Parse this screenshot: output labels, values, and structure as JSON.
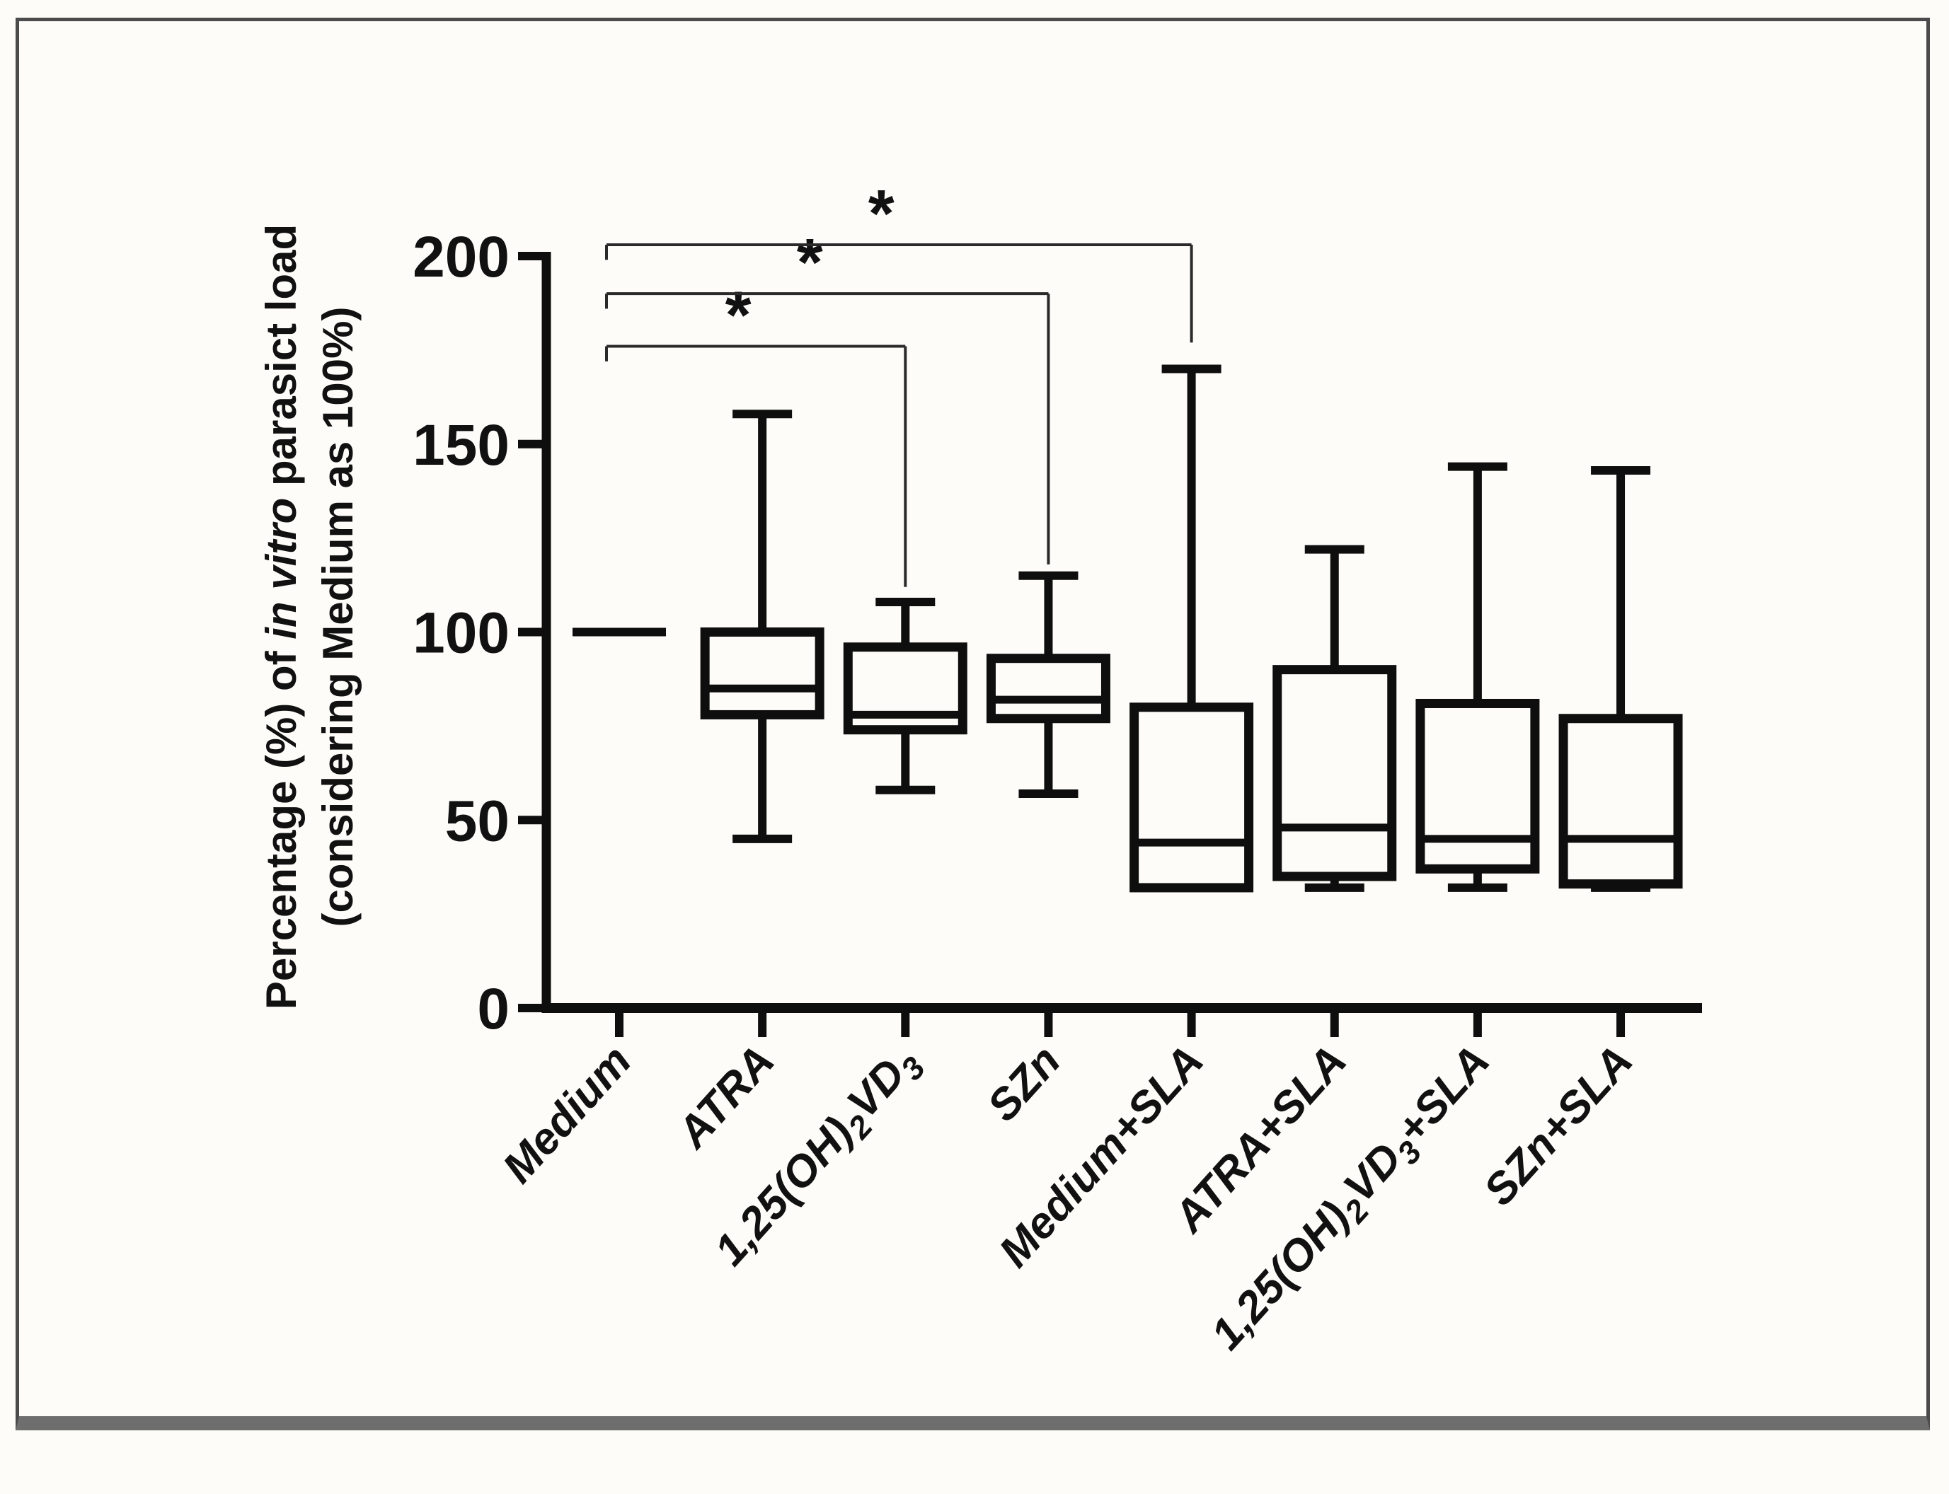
{
  "figure": {
    "kind": "boxplot-figure",
    "background": "#fdfcf9",
    "frame_color": "#4b4b4b",
    "frame_bottom_color": "#6e6e6e",
    "ink_color": "#0e0e0e",
    "bracket_color": "#2a2a2a"
  },
  "chart_data": {
    "type": "box",
    "title": "",
    "ylabel_line1_prefix": "Percentage (%) of ",
    "ylabel_line1_italic": "in vitro",
    "ylabel_line1_suffix": " parasict load",
    "ylabel_line2": "(considering Medium as 100%)",
    "xlabel": "",
    "ylim": [
      0,
      200
    ],
    "y_ticks": [
      0,
      50,
      100,
      150,
      200
    ],
    "grid": false,
    "legend": "none",
    "categories": [
      {
        "name": "Medium",
        "parts": [
          {
            "t": "Medium"
          }
        ]
      },
      {
        "name": "ATRA",
        "parts": [
          {
            "t": "ATRA"
          }
        ]
      },
      {
        "name": "1,25(OH)2VD3",
        "parts": [
          {
            "t": "1,25(OH)"
          },
          {
            "t": "2",
            "sub": true
          },
          {
            "t": "VD"
          },
          {
            "t": "3",
            "sub": true
          }
        ]
      },
      {
        "name": "SZn",
        "parts": [
          {
            "t": "SZn"
          }
        ]
      },
      {
        "name": "Medium+SLA",
        "parts": [
          {
            "t": "Medium+SLA"
          }
        ]
      },
      {
        "name": "ATRA+SLA",
        "parts": [
          {
            "t": "ATRA+SLA"
          }
        ]
      },
      {
        "name": "1,25(OH)2VD3+SLA",
        "parts": [
          {
            "t": "1,25(OH)"
          },
          {
            "t": "2",
            "sub": true
          },
          {
            "t": "VD"
          },
          {
            "t": "3",
            "sub": true
          },
          {
            "t": "+SLA"
          }
        ]
      },
      {
        "name": "SZn+SLA",
        "parts": [
          {
            "t": "SZn+SLA"
          }
        ]
      }
    ],
    "series": [
      {
        "category": "Medium",
        "reference_line": 100
      },
      {
        "category": "ATRA",
        "min": 45,
        "q1": 78,
        "median": 85,
        "q3": 100,
        "max": 158
      },
      {
        "category": "1,25(OH)2VD3",
        "min": 58,
        "q1": 74,
        "median": 78,
        "q3": 96,
        "max": 108
      },
      {
        "category": "SZn",
        "min": 57,
        "q1": 77,
        "median": 82,
        "q3": 93,
        "max": 115
      },
      {
        "category": "Medium+SLA",
        "min": 32,
        "q1": 32,
        "median": 44,
        "q3": 80,
        "max": 170
      },
      {
        "category": "ATRA+SLA",
        "min": 32,
        "q1": 35,
        "median": 48,
        "q3": 90,
        "max": 122
      },
      {
        "category": "1,25(OH)2VD3+SLA",
        "min": 32,
        "q1": 37,
        "median": 45,
        "q3": 81,
        "max": 144
      },
      {
        "category": "SZn+SLA",
        "min": 32,
        "q1": 33,
        "median": 45,
        "q3": 77,
        "max": 143
      }
    ],
    "significance_brackets": [
      {
        "from": 0,
        "to": 2,
        "y": 176,
        "left_end": 172,
        "right_end": 112,
        "label": "*"
      },
      {
        "from": 0,
        "to": 3,
        "y": 190,
        "left_end": 186,
        "right_end": 118,
        "label": "*"
      },
      {
        "from": 0,
        "to": 4,
        "y": 203,
        "left_end": 199,
        "right_end": 177,
        "label": "*"
      }
    ]
  }
}
